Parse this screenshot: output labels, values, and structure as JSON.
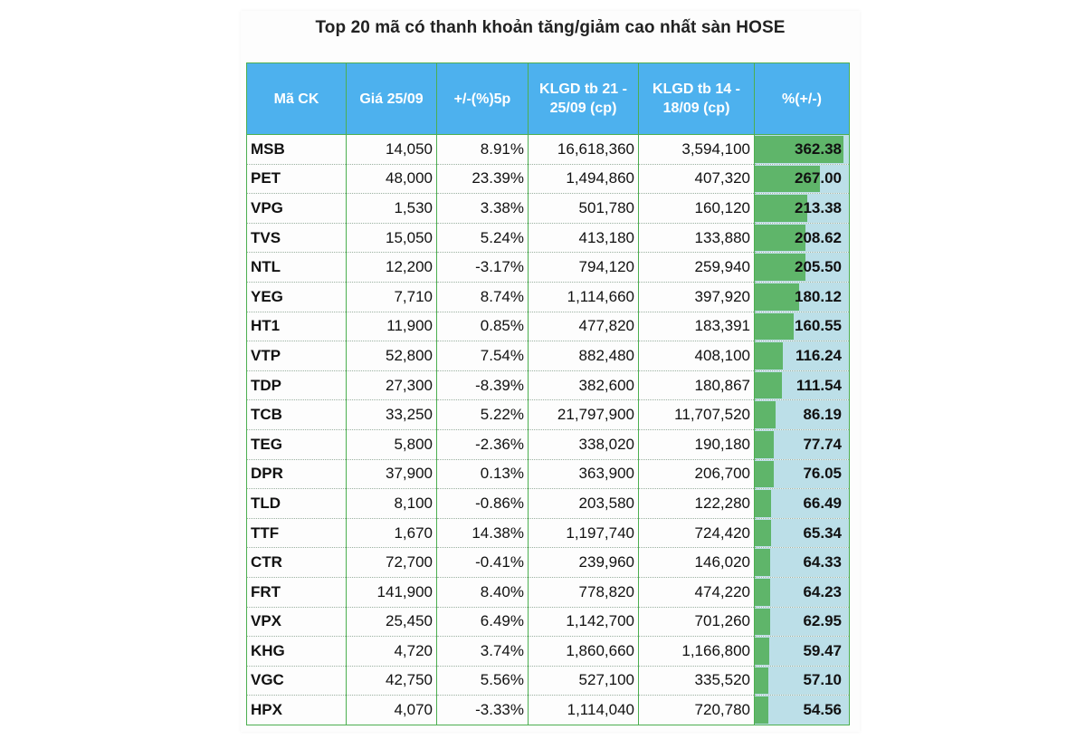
{
  "title": "Top 20 mã có thanh khoản tăng/giảm cao nhất sàn HOSE",
  "headers": {
    "code": "Mã CK",
    "price": "Giá 25/09",
    "change_5d": "+/-(%)5p",
    "vol_recent": "KLGD tb 21 - 25/09 (cp)",
    "vol_prior": "KLGD tb 14 - 18/09 (cp)",
    "pct": "%(+/-)"
  },
  "colors": {
    "header_bg": "#4db1ee",
    "border": "#4caf50",
    "positive": "#6f9bd6",
    "negative": "#e53935",
    "bar": "#5fb56a",
    "bar_bg": "#bcdfe8"
  },
  "chart_data": {
    "type": "table",
    "title": "Top 20 mã có thanh khoản tăng/giảm cao nhất sàn HOSE",
    "columns": [
      "Mã CK",
      "Giá 25/09",
      "+/-(%)5p",
      "KLGD tb 21 - 25/09 (cp)",
      "KLGD tb 14 - 18/09 (cp)",
      "%(+/-)"
    ],
    "bar_max": 362.38,
    "rows": [
      {
        "code": "MSB",
        "price": "14,050",
        "change": "8.91%",
        "vol_recent": "16,618,360",
        "vol_prior": "3,594,100",
        "pct": "362.38"
      },
      {
        "code": "PET",
        "price": "48,000",
        "change": "23.39%",
        "vol_recent": "1,494,860",
        "vol_prior": "407,320",
        "pct": "267.00"
      },
      {
        "code": "VPG",
        "price": "1,530",
        "change": "3.38%",
        "vol_recent": "501,780",
        "vol_prior": "160,120",
        "pct": "213.38"
      },
      {
        "code": "TVS",
        "price": "15,050",
        "change": "5.24%",
        "vol_recent": "413,180",
        "vol_prior": "133,880",
        "pct": "208.62"
      },
      {
        "code": "NTL",
        "price": "12,200",
        "change": "-3.17%",
        "vol_recent": "794,120",
        "vol_prior": "259,940",
        "pct": "205.50"
      },
      {
        "code": "YEG",
        "price": "7,710",
        "change": "8.74%",
        "vol_recent": "1,114,660",
        "vol_prior": "397,920",
        "pct": "180.12"
      },
      {
        "code": "HT1",
        "price": "11,900",
        "change": "0.85%",
        "vol_recent": "477,820",
        "vol_prior": "183,391",
        "pct": "160.55"
      },
      {
        "code": "VTP",
        "price": "52,800",
        "change": "7.54%",
        "vol_recent": "882,480",
        "vol_prior": "408,100",
        "pct": "116.24"
      },
      {
        "code": "TDP",
        "price": "27,300",
        "change": "-8.39%",
        "vol_recent": "382,600",
        "vol_prior": "180,867",
        "pct": "111.54"
      },
      {
        "code": "TCB",
        "price": "33,250",
        "change": "5.22%",
        "vol_recent": "21,797,900",
        "vol_prior": "11,707,520",
        "pct": "86.19"
      },
      {
        "code": "TEG",
        "price": "5,800",
        "change": "-2.36%",
        "vol_recent": "338,020",
        "vol_prior": "190,180",
        "pct": "77.74"
      },
      {
        "code": "DPR",
        "price": "37,900",
        "change": "0.13%",
        "vol_recent": "363,900",
        "vol_prior": "206,700",
        "pct": "76.05"
      },
      {
        "code": "TLD",
        "price": "8,100",
        "change": "-0.86%",
        "vol_recent": "203,580",
        "vol_prior": "122,280",
        "pct": "66.49"
      },
      {
        "code": "TTF",
        "price": "1,670",
        "change": "14.38%",
        "vol_recent": "1,197,740",
        "vol_prior": "724,420",
        "pct": "65.34"
      },
      {
        "code": "CTR",
        "price": "72,700",
        "change": "-0.41%",
        "vol_recent": "239,960",
        "vol_prior": "146,020",
        "pct": "64.33"
      },
      {
        "code": "FRT",
        "price": "141,900",
        "change": "8.40%",
        "vol_recent": "778,820",
        "vol_prior": "474,220",
        "pct": "64.23"
      },
      {
        "code": "VPX",
        "price": "25,450",
        "change": "6.49%",
        "vol_recent": "1,142,700",
        "vol_prior": "701,260",
        "pct": "62.95"
      },
      {
        "code": "KHG",
        "price": "4,720",
        "change": "3.74%",
        "vol_recent": "1,860,660",
        "vol_prior": "1,166,800",
        "pct": "59.47"
      },
      {
        "code": "VGC",
        "price": "42,750",
        "change": "5.56%",
        "vol_recent": "527,100",
        "vol_prior": "335,520",
        "pct": "57.10"
      },
      {
        "code": "HPX",
        "price": "4,070",
        "change": "-3.33%",
        "vol_recent": "1,114,040",
        "vol_prior": "720,780",
        "pct": "54.56"
      }
    ]
  }
}
